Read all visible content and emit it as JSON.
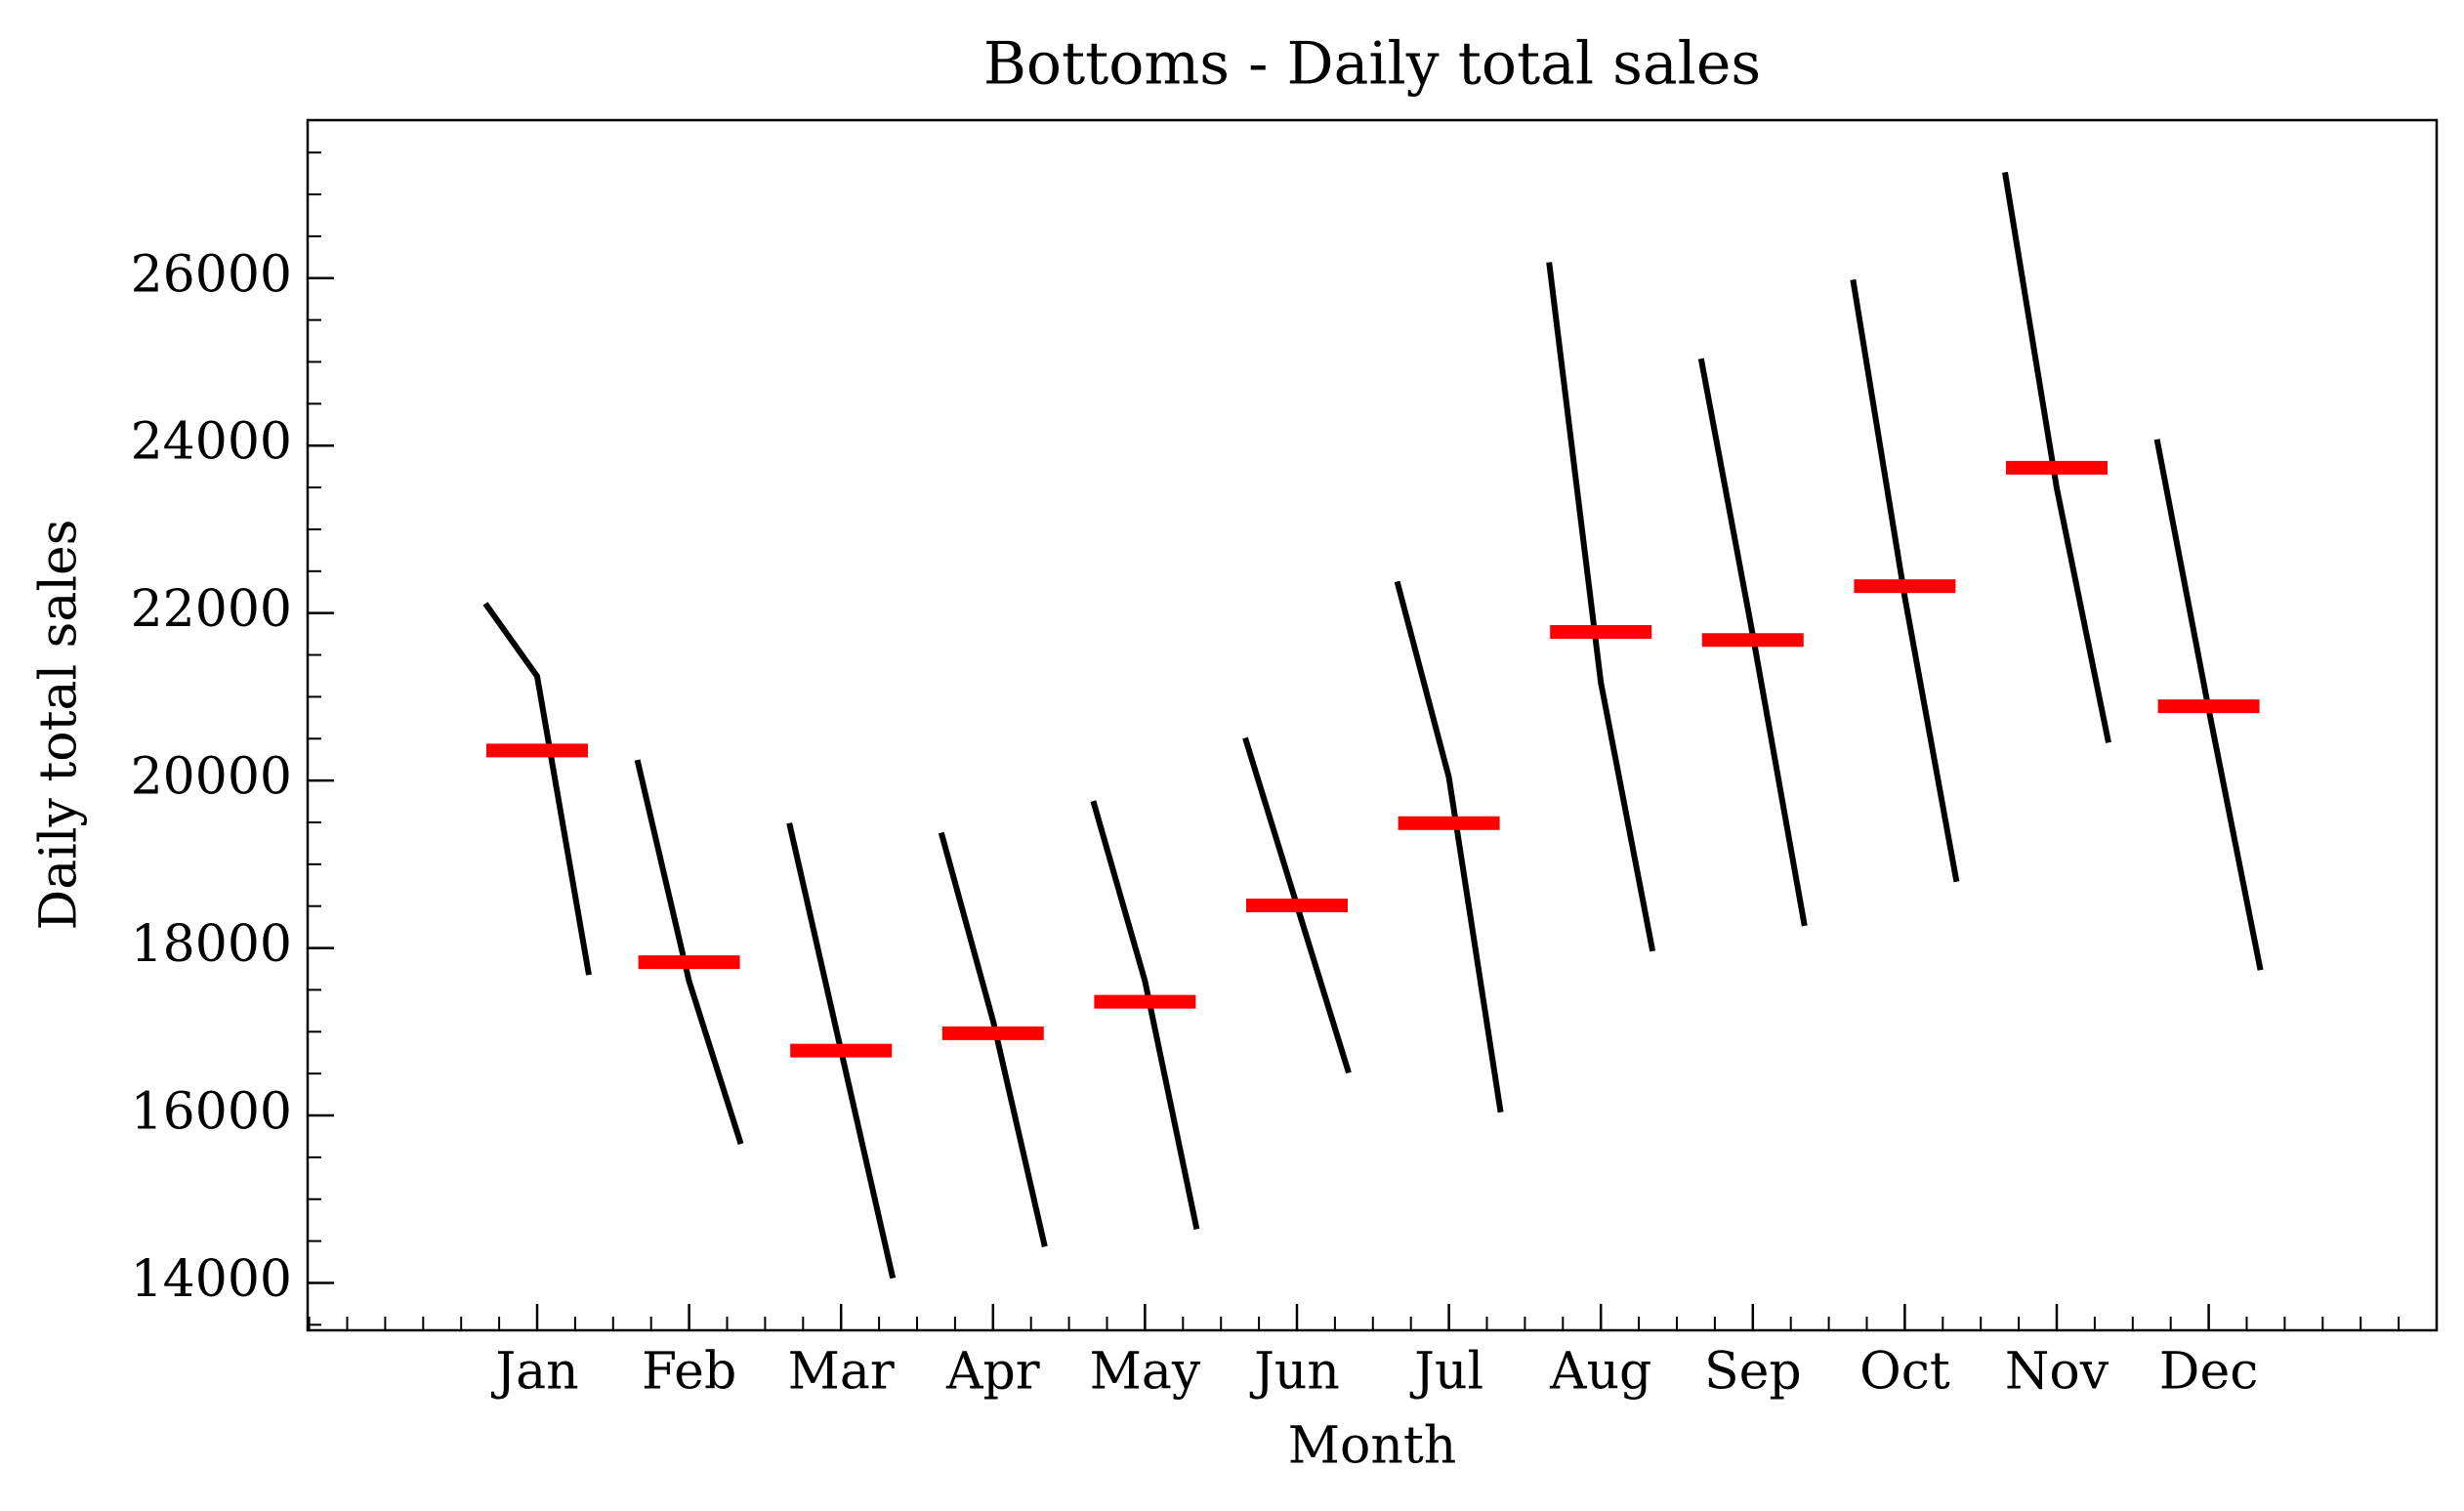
{
  "chart_data": {
    "type": "month_plot",
    "title": "Bottoms - Daily total sales",
    "xlabel": "Month",
    "ylabel": "Daily total sales",
    "categories": [
      "Jan",
      "Feb",
      "Mar",
      "Apr",
      "May",
      "Jun",
      "Jul",
      "Aug",
      "Sep",
      "Oct",
      "Nov",
      "Dec"
    ],
    "subseries": [
      {
        "values": [
          22113,
          21245,
          17679
        ]
      },
      {
        "values": [
          20245,
          17604,
          15660
        ]
      },
      {
        "values": [
          19491,
          16774,
          14057
        ]
      },
      {
        "values": [
          19377,
          17132,
          14434
        ]
      },
      {
        "values": [
          19755,
          17604,
          14642
        ]
      },
      {
        "values": [
          20509,
          18509,
          16509
        ]
      },
      {
        "values": [
          22377,
          20038,
          16038
        ]
      },
      {
        "values": [
          26189,
          21170,
          17962
        ]
      },
      {
        "values": [
          25038,
          21735,
          18264
        ]
      },
      {
        "values": [
          25981,
          22190,
          18792
        ]
      },
      {
        "values": [
          27264,
          23491,
          20453
        ]
      },
      {
        "values": [
          24075,
          20850,
          17736
        ]
      }
    ],
    "means": [
      20358,
      17830,
      16774,
      16981,
      17358,
      18509,
      19491,
      21774,
      21679,
      22321,
      23736,
      20887
    ],
    "line_color": "#000000",
    "mean_color": "#ff0000",
    "ylim": [
      13434,
      27887
    ],
    "yticks": [
      14000,
      16000,
      18000,
      20000,
      22000,
      24000,
      26000
    ],
    "minor_ticks": true
  }
}
